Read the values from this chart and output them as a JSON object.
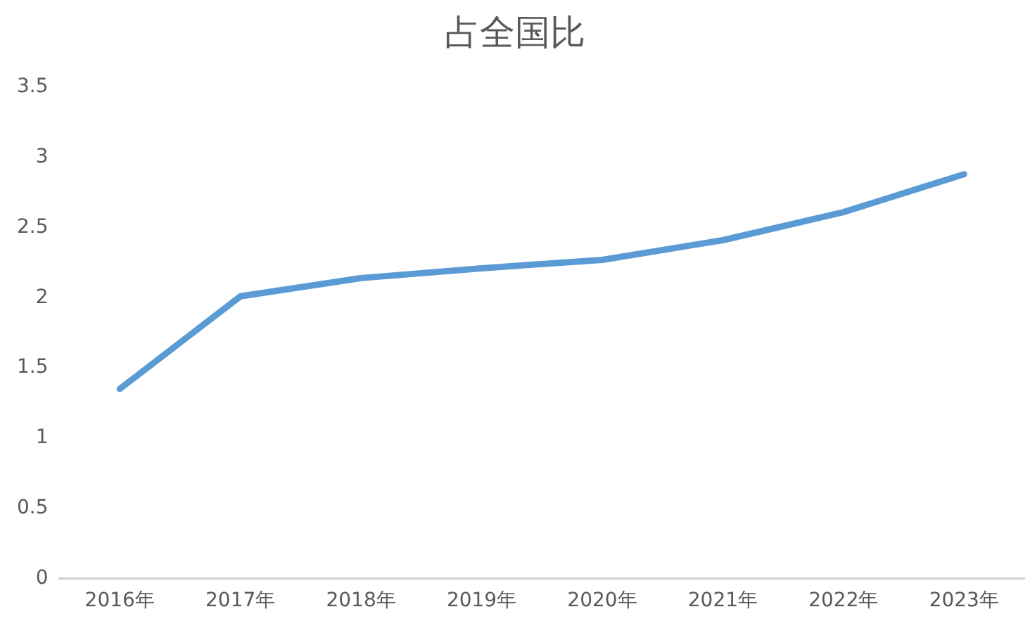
{
  "chart_data": {
    "type": "line",
    "title": "占全国比",
    "categories": [
      "2016年",
      "2017年",
      "2018年",
      "2019年",
      "2020年",
      "2021年",
      "2022年",
      "2023年"
    ],
    "series": [
      {
        "color": "#5b9bd5",
        "values": [
          1.35,
          2.01,
          2.14,
          2.21,
          2.27,
          2.41,
          2.61,
          2.88
        ]
      }
    ],
    "ylim": [
      0,
      3.5
    ],
    "yticks": [
      0,
      0.5,
      1,
      1.5,
      2,
      2.5,
      3,
      3.5
    ],
    "grid": false,
    "legend": false,
    "marker": "none",
    "line_style": "solid"
  }
}
